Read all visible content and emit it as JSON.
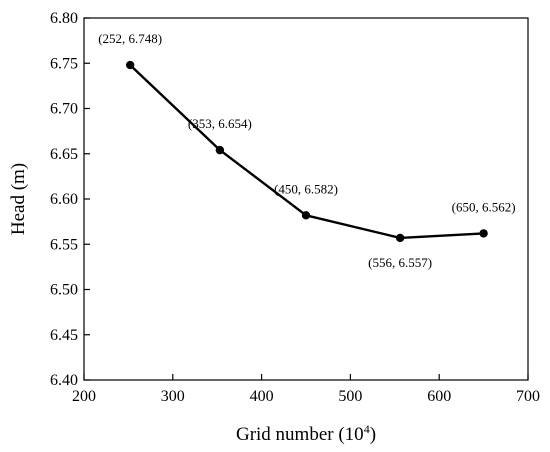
{
  "chart_data": {
    "type": "line",
    "xlabel_main": "Grid number (10",
    "xlabel_sup": "4",
    "xlabel_end": ")",
    "ylabel": "Head  (m)",
    "xlim": [
      200,
      700
    ],
    "ylim": [
      6.4,
      6.8
    ],
    "x_ticks": [
      200,
      300,
      400,
      500,
      600,
      700
    ],
    "y_ticks": [
      6.4,
      6.45,
      6.5,
      6.55,
      6.6,
      6.65,
      6.7,
      6.75,
      6.8
    ],
    "y_tick_labels": [
      "6.40",
      "6.45",
      "6.50",
      "6.55",
      "6.60",
      "6.65",
      "6.70",
      "6.75",
      "6.80"
    ],
    "series": [
      {
        "x": [
          252,
          353,
          450,
          556,
          650
        ],
        "y": [
          6.748,
          6.654,
          6.582,
          6.557,
          6.562
        ],
        "labels": [
          "(252, 6.748)",
          "(353, 6.654)",
          "(450, 6.582)",
          "(556, 6.557)",
          "(650, 6.562)"
        ],
        "label_position": [
          "above",
          "above",
          "above",
          "below",
          "above"
        ]
      }
    ],
    "line_color": "#000000",
    "marker": "circle",
    "grid": false,
    "legend": false
  }
}
